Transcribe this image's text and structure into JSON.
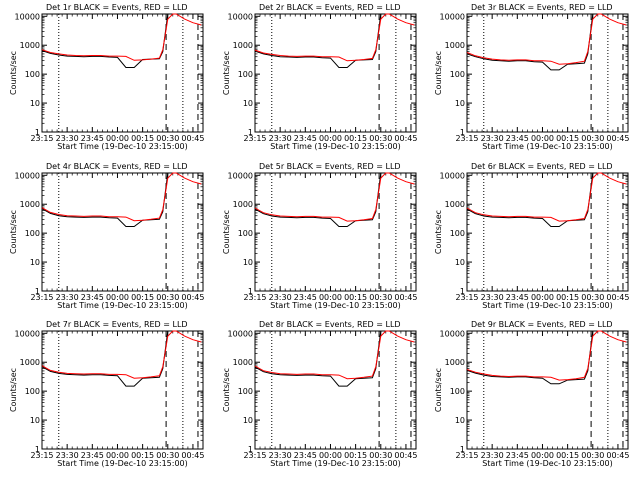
{
  "chart_data": [
    {
      "type": "line",
      "title": "Det 1r BLACK = Events, RED = LLD",
      "xlabel": "Start Time (19-Dec-10 23:15:00)",
      "ylabel": "Counts/sec",
      "x_ticks": [
        "23:15",
        "23:30",
        "23:45",
        "00:00",
        "00:15",
        "00:30",
        "00:45"
      ],
      "y_ticks": [
        "1",
        "10",
        "100",
        "1000",
        "10000"
      ],
      "yscale": "log",
      "ylim": [
        1,
        12000
      ],
      "time_minutes": [
        0,
        5,
        10,
        15,
        20,
        25,
        30,
        35,
        40,
        45,
        50,
        55,
        60,
        65,
        70,
        72,
        75,
        78,
        80,
        85,
        90,
        95
      ],
      "series": [
        {
          "name": "BLACK",
          "color": "#000000",
          "values": [
            650,
            520,
            460,
            420,
            410,
            400,
            410,
            410,
            390,
            380,
            170,
            170,
            320,
            330,
            340,
            600,
            12000,
            12000,
            null,
            null,
            null,
            null
          ]
        },
        {
          "name": "RED",
          "color": "#ff0000",
          "values": [
            700,
            560,
            500,
            460,
            440,
            430,
            440,
            440,
            420,
            420,
            410,
            300,
            310,
            330,
            360,
            700,
            8000,
            12000,
            12000,
            8000,
            6000,
            5000
          ]
        }
      ],
      "vlines": [
        {
          "minute": 10,
          "style": "dotted"
        },
        {
          "minute": 74,
          "style": "dashed"
        },
        {
          "minute": 84,
          "style": "dotted"
        },
        {
          "minute": 93,
          "style": "dashed"
        }
      ]
    },
    {
      "type": "line",
      "title": "Det 2r BLACK = Events, RED = LLD",
      "xlabel": "Start Time (19-Dec-10 23:15:00)",
      "ylabel": "Counts/sec",
      "x_ticks": [
        "23:15",
        "23:30",
        "23:45",
        "00:00",
        "00:15",
        "00:30",
        "00:45"
      ],
      "y_ticks": [
        "1",
        "10",
        "100",
        "1000",
        "10000"
      ],
      "yscale": "log",
      "ylim": [
        1,
        12000
      ],
      "time_minutes": [
        0,
        5,
        10,
        15,
        20,
        25,
        30,
        35,
        40,
        45,
        50,
        55,
        60,
        65,
        70,
        72,
        75,
        78,
        80,
        85,
        90,
        95
      ],
      "series": [
        {
          "name": "BLACK",
          "color": "#000000",
          "values": [
            620,
            500,
            440,
            400,
            390,
            380,
            390,
            390,
            370,
            360,
            170,
            170,
            300,
            310,
            320,
            600,
            12000,
            12000,
            null,
            null,
            null,
            null
          ]
        },
        {
          "name": "RED",
          "color": "#ff0000",
          "values": [
            680,
            540,
            480,
            440,
            420,
            410,
            420,
            420,
            400,
            400,
            390,
            290,
            300,
            320,
            350,
            700,
            8000,
            12000,
            12000,
            8000,
            6000,
            5000
          ]
        }
      ],
      "vlines": [
        {
          "minute": 10,
          "style": "dotted"
        },
        {
          "minute": 74,
          "style": "dashed"
        },
        {
          "minute": 84,
          "style": "dotted"
        },
        {
          "minute": 93,
          "style": "dashed"
        }
      ]
    },
    {
      "type": "line",
      "title": "Det 3r BLACK = Events, RED = LLD",
      "xlabel": "Start Time (19-Dec-10 23:15:00)",
      "ylabel": "Counts/sec",
      "x_ticks": [
        "23:15",
        "23:30",
        "23:45",
        "00:00",
        "00:15",
        "00:30",
        "00:45"
      ],
      "y_ticks": [
        "1",
        "10",
        "100",
        "1000",
        "10000"
      ],
      "yscale": "log",
      "ylim": [
        1,
        12000
      ],
      "time_minutes": [
        0,
        5,
        10,
        15,
        20,
        25,
        30,
        35,
        40,
        45,
        50,
        55,
        60,
        65,
        70,
        72,
        75,
        78,
        80,
        85,
        90,
        95
      ],
      "series": [
        {
          "name": "BLACK",
          "color": "#000000",
          "values": [
            500,
            400,
            340,
            300,
            290,
            280,
            290,
            290,
            270,
            260,
            140,
            140,
            220,
            230,
            240,
            500,
            12000,
            12000,
            null,
            null,
            null,
            null
          ]
        },
        {
          "name": "RED",
          "color": "#ff0000",
          "values": [
            560,
            430,
            370,
            330,
            310,
            300,
            310,
            310,
            290,
            290,
            280,
            220,
            230,
            250,
            280,
            600,
            8000,
            12000,
            12000,
            8000,
            6000,
            5000
          ]
        }
      ],
      "vlines": [
        {
          "minute": 10,
          "style": "dotted"
        },
        {
          "minute": 74,
          "style": "dashed"
        },
        {
          "minute": 84,
          "style": "dotted"
        },
        {
          "minute": 93,
          "style": "dashed"
        }
      ]
    },
    {
      "type": "line",
      "title": "Det 4r BLACK = Events, RED = LLD",
      "xlabel": "Start Time (19-Dec-10 23:15:00)",
      "ylabel": "Counts/sec",
      "x_ticks": [
        "23:15",
        "23:30",
        "23:45",
        "00:00",
        "00:15",
        "00:30",
        "00:45"
      ],
      "y_ticks": [
        "1",
        "10",
        "100",
        "1000",
        "10000"
      ],
      "yscale": "log",
      "ylim": [
        1,
        12000
      ],
      "time_minutes": [
        0,
        5,
        10,
        15,
        20,
        25,
        30,
        35,
        40,
        45,
        50,
        55,
        60,
        65,
        70,
        72,
        75,
        78,
        80,
        85,
        90,
        95
      ],
      "series": [
        {
          "name": "BLACK",
          "color": "#000000",
          "values": [
            700,
            480,
            400,
            370,
            360,
            350,
            360,
            360,
            340,
            330,
            170,
            170,
            280,
            290,
            300,
            550,
            12000,
            12000,
            null,
            null,
            null,
            null
          ]
        },
        {
          "name": "RED",
          "color": "#ff0000",
          "values": [
            760,
            520,
            440,
            400,
            390,
            380,
            390,
            390,
            370,
            370,
            360,
            270,
            280,
            300,
            330,
            650,
            8000,
            12000,
            12000,
            8000,
            6000,
            5000
          ]
        }
      ],
      "vlines": [
        {
          "minute": 10,
          "style": "dotted"
        },
        {
          "minute": 74,
          "style": "dashed"
        },
        {
          "minute": 84,
          "style": "dotted"
        },
        {
          "minute": 93,
          "style": "dashed"
        }
      ]
    },
    {
      "type": "line",
      "title": "Det 5r BLACK = Events, RED = LLD",
      "xlabel": "Start Time (19-Dec-10 23:15:00)",
      "ylabel": "Counts/sec",
      "x_ticks": [
        "23:15",
        "23:30",
        "23:45",
        "00:00",
        "00:15",
        "00:30",
        "00:45"
      ],
      "y_ticks": [
        "1",
        "10",
        "100",
        "1000",
        "10000"
      ],
      "yscale": "log",
      "ylim": [
        1,
        12000
      ],
      "time_minutes": [
        0,
        5,
        10,
        15,
        20,
        25,
        30,
        35,
        40,
        45,
        50,
        55,
        60,
        65,
        70,
        72,
        75,
        78,
        80,
        85,
        90,
        95
      ],
      "series": [
        {
          "name": "BLACK",
          "color": "#000000",
          "values": [
            680,
            470,
            390,
            360,
            350,
            340,
            350,
            350,
            330,
            320,
            170,
            170,
            270,
            280,
            290,
            550,
            12000,
            12000,
            null,
            null,
            null,
            null
          ]
        },
        {
          "name": "RED",
          "color": "#ff0000",
          "values": [
            740,
            510,
            430,
            390,
            380,
            370,
            380,
            380,
            360,
            360,
            350,
            260,
            270,
            290,
            320,
            650,
            8000,
            12000,
            12000,
            8000,
            6000,
            5000
          ]
        }
      ],
      "vlines": [
        {
          "minute": 10,
          "style": "dotted"
        },
        {
          "minute": 74,
          "style": "dashed"
        },
        {
          "minute": 84,
          "style": "dotted"
        },
        {
          "minute": 93,
          "style": "dashed"
        }
      ]
    },
    {
      "type": "line",
      "title": "Det 6r BLACK = Events, RED = LLD",
      "xlabel": "Start Time (19-Dec-10 23:15:00)",
      "ylabel": "Counts/sec",
      "x_ticks": [
        "23:15",
        "23:30",
        "23:45",
        "00:00",
        "00:15",
        "00:30",
        "00:45"
      ],
      "y_ticks": [
        "1",
        "10",
        "100",
        "1000",
        "10000"
      ],
      "yscale": "log",
      "ylim": [
        1,
        12000
      ],
      "time_minutes": [
        0,
        5,
        10,
        15,
        20,
        25,
        30,
        35,
        40,
        45,
        50,
        55,
        60,
        65,
        70,
        72,
        75,
        78,
        80,
        85,
        90,
        95
      ],
      "series": [
        {
          "name": "BLACK",
          "color": "#000000",
          "values": [
            680,
            470,
            390,
            360,
            350,
            340,
            350,
            350,
            330,
            320,
            170,
            170,
            270,
            280,
            290,
            550,
            12000,
            12000,
            null,
            null,
            null,
            null
          ]
        },
        {
          "name": "RED",
          "color": "#ff0000",
          "values": [
            740,
            510,
            430,
            390,
            380,
            370,
            380,
            380,
            360,
            360,
            350,
            260,
            270,
            290,
            320,
            650,
            8000,
            12000,
            12000,
            8000,
            6000,
            5000
          ]
        }
      ],
      "vlines": [
        {
          "minute": 10,
          "style": "dotted"
        },
        {
          "minute": 74,
          "style": "dashed"
        },
        {
          "minute": 84,
          "style": "dotted"
        },
        {
          "minute": 93,
          "style": "dashed"
        }
      ]
    },
    {
      "type": "line",
      "title": "Det 7r BLACK = Events, RED = LLD",
      "xlabel": "Start Time (19-Dec-10 23:15:00)",
      "ylabel": "Counts/sec",
      "x_ticks": [
        "23:15",
        "23:30",
        "23:45",
        "00:00",
        "00:15",
        "00:30",
        "00:45"
      ],
      "y_ticks": [
        "1",
        "10",
        "100",
        "1000",
        "10000"
      ],
      "yscale": "log",
      "ylim": [
        1,
        12000
      ],
      "time_minutes": [
        0,
        5,
        10,
        15,
        20,
        25,
        30,
        35,
        40,
        45,
        50,
        55,
        60,
        65,
        70,
        72,
        75,
        78,
        80,
        85,
        90,
        95
      ],
      "series": [
        {
          "name": "BLACK",
          "color": "#000000",
          "values": [
            700,
            480,
            410,
            380,
            370,
            360,
            370,
            370,
            350,
            340,
            150,
            150,
            280,
            290,
            300,
            600,
            12000,
            12000,
            null,
            null,
            null,
            null
          ]
        },
        {
          "name": "RED",
          "color": "#ff0000",
          "values": [
            760,
            520,
            450,
            410,
            400,
            390,
            400,
            400,
            380,
            380,
            370,
            280,
            290,
            310,
            340,
            700,
            8000,
            12000,
            12000,
            8000,
            6000,
            5000
          ]
        }
      ],
      "vlines": [
        {
          "minute": 10,
          "style": "dotted"
        },
        {
          "minute": 74,
          "style": "dashed"
        },
        {
          "minute": 84,
          "style": "dotted"
        },
        {
          "minute": 93,
          "style": "dashed"
        }
      ]
    },
    {
      "type": "line",
      "title": "Det 8r BLACK = Events, RED = LLD",
      "xlabel": "Start Time (19-Dec-10 23:15:00)",
      "ylabel": "Counts/sec",
      "x_ticks": [
        "23:15",
        "23:30",
        "23:45",
        "00:00",
        "00:15",
        "00:30",
        "00:45"
      ],
      "y_ticks": [
        "1",
        "10",
        "100",
        "1000",
        "10000"
      ],
      "yscale": "log",
      "ylim": [
        1,
        12000
      ],
      "time_minutes": [
        0,
        5,
        10,
        15,
        20,
        25,
        30,
        35,
        40,
        45,
        50,
        55,
        60,
        65,
        70,
        72,
        75,
        78,
        80,
        85,
        90,
        95
      ],
      "series": [
        {
          "name": "BLACK",
          "color": "#000000",
          "values": [
            680,
            470,
            400,
            370,
            360,
            350,
            360,
            360,
            340,
            330,
            150,
            150,
            270,
            280,
            290,
            600,
            12000,
            12000,
            null,
            null,
            null,
            null
          ]
        },
        {
          "name": "RED",
          "color": "#ff0000",
          "values": [
            740,
            510,
            440,
            400,
            390,
            380,
            390,
            390,
            370,
            370,
            360,
            270,
            280,
            300,
            330,
            700,
            8000,
            12000,
            12000,
            8000,
            6000,
            5000
          ]
        }
      ],
      "vlines": [
        {
          "minute": 10,
          "style": "dotted"
        },
        {
          "minute": 74,
          "style": "dashed"
        },
        {
          "minute": 84,
          "style": "dotted"
        },
        {
          "minute": 93,
          "style": "dashed"
        }
      ]
    },
    {
      "type": "line",
      "title": "Det 9r BLACK = Events, RED = LLD",
      "xlabel": "Start Time (19-Dec-10 23:15:00)",
      "ylabel": "Counts/sec",
      "x_ticks": [
        "23:15",
        "23:30",
        "23:45",
        "00:00",
        "00:15",
        "00:30",
        "00:45"
      ],
      "y_ticks": [
        "1",
        "10",
        "100",
        "1000",
        "10000"
      ],
      "yscale": "log",
      "ylim": [
        1,
        12000
      ],
      "time_minutes": [
        0,
        5,
        10,
        15,
        20,
        25,
        30,
        35,
        40,
        45,
        50,
        55,
        60,
        65,
        70,
        72,
        75,
        78,
        80,
        85,
        90,
        95
      ],
      "series": [
        {
          "name": "BLACK",
          "color": "#000000",
          "values": [
            520,
            420,
            360,
            320,
            310,
            300,
            310,
            310,
            290,
            280,
            180,
            180,
            240,
            250,
            260,
            500,
            12000,
            12000,
            null,
            null,
            null,
            null
          ]
        },
        {
          "name": "RED",
          "color": "#ff0000",
          "values": [
            560,
            450,
            390,
            350,
            330,
            320,
            330,
            330,
            310,
            310,
            300,
            240,
            250,
            270,
            300,
            600,
            8000,
            12000,
            12000,
            8000,
            6000,
            5000
          ]
        }
      ],
      "vlines": [
        {
          "minute": 10,
          "style": "dotted"
        },
        {
          "minute": 74,
          "style": "dashed"
        },
        {
          "minute": 84,
          "style": "dotted"
        },
        {
          "minute": 93,
          "style": "dashed"
        }
      ]
    }
  ]
}
